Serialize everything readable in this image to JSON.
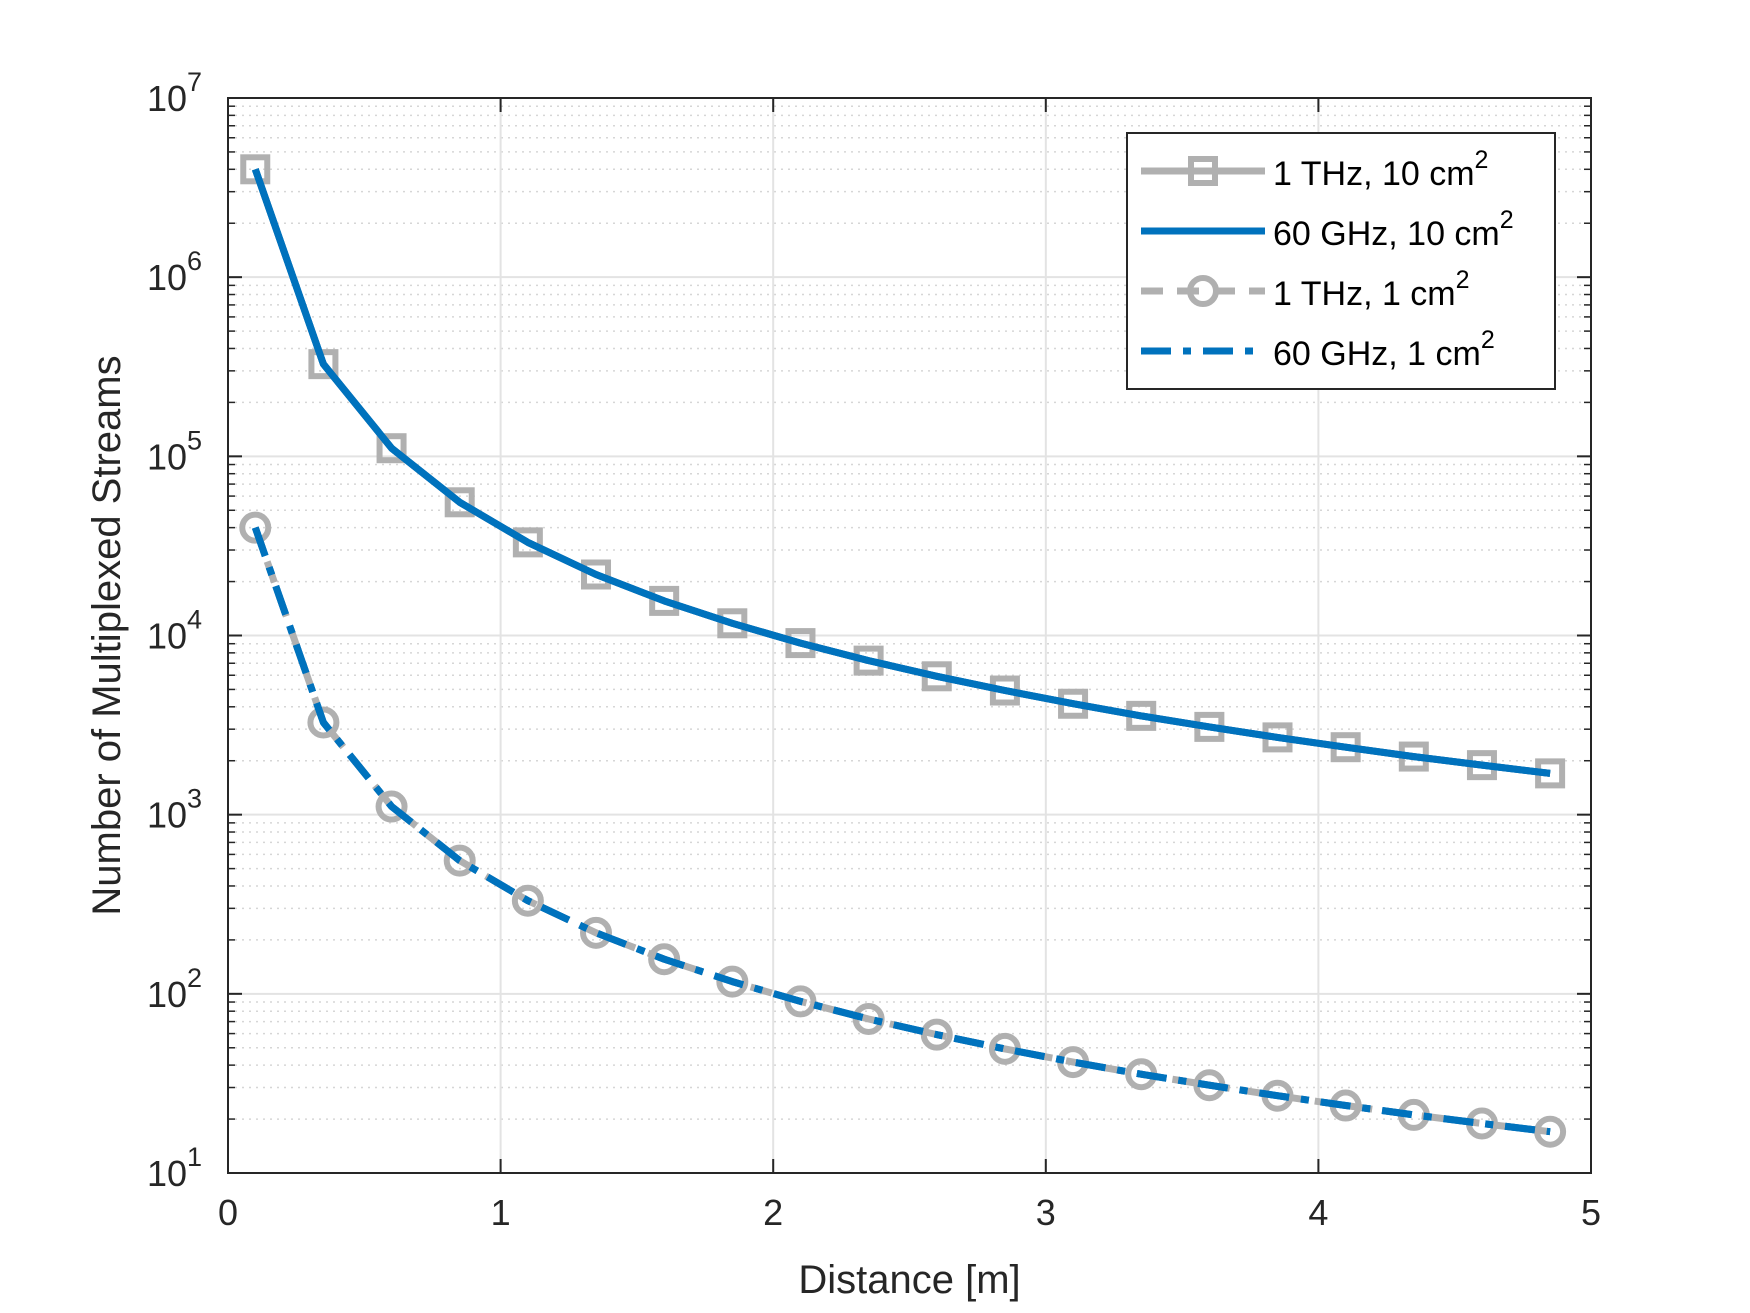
{
  "chart_data": {
    "type": "line",
    "title": "",
    "xlabel": "Distance [m]",
    "ylabel": "Number of Multiplexed Streams",
    "xlim": [
      0,
      5
    ],
    "ylim": [
      10,
      10000000
    ],
    "yscale": "log",
    "grid": true,
    "minor_grid": true,
    "legend_position": "top-right",
    "x_ticks": [
      "0",
      "1",
      "2",
      "3",
      "4",
      "5"
    ],
    "y_ticks": [
      {
        "base": "10",
        "exp": "1"
      },
      {
        "base": "10",
        "exp": "2"
      },
      {
        "base": "10",
        "exp": "3"
      },
      {
        "base": "10",
        "exp": "4"
      },
      {
        "base": "10",
        "exp": "5"
      },
      {
        "base": "10",
        "exp": "6"
      },
      {
        "base": "10",
        "exp": "7"
      }
    ],
    "x": [
      0.1,
      0.35,
      0.6,
      0.85,
      1.1,
      1.35,
      1.6,
      1.85,
      2.1,
      2.35,
      2.6,
      2.85,
      3.1,
      3.35,
      3.6,
      3.85,
      4.1,
      4.35,
      4.6,
      4.85
    ],
    "series": [
      {
        "name": "1 THz, 10 cm",
        "name_sup": "2",
        "color": "#b0b0b0",
        "line": "solid",
        "marker": "square",
        "values": [
          4000000,
          327000,
          111000,
          55400,
          33100,
          21900,
          15600,
          11700,
          9070,
          7240,
          5920,
          4930,
          4160,
          3560,
          3090,
          2700,
          2380,
          2110,
          1890,
          1700
        ]
      },
      {
        "name": "60 GHz, 10 cm",
        "name_sup": "2",
        "color": "#0072bd",
        "line": "solid",
        "marker": "none",
        "values": [
          4000000,
          327000,
          111000,
          55400,
          33100,
          21900,
          15600,
          11700,
          9070,
          7240,
          5920,
          4930,
          4160,
          3560,
          3090,
          2700,
          2380,
          2110,
          1890,
          1700
        ]
      },
      {
        "name": "1 THz, 1 cm",
        "name_sup": "2",
        "color": "#b0b0b0",
        "line": "dashed",
        "marker": "circle",
        "values": [
          40000,
          3270,
          1110,
          554,
          331,
          219,
          156,
          117,
          90.7,
          72.4,
          59.2,
          49.3,
          41.6,
          35.6,
          30.9,
          27.0,
          23.8,
          21.1,
          18.9,
          17.0
        ]
      },
      {
        "name": "60 GHz, 1 cm",
        "name_sup": "2",
        "color": "#0072bd",
        "line": "dashdot",
        "marker": "none",
        "values": [
          40000,
          3270,
          1110,
          554,
          331,
          219,
          156,
          117,
          90.7,
          72.4,
          59.2,
          49.3,
          41.6,
          35.6,
          30.9,
          27.0,
          23.8,
          21.1,
          18.9,
          17.0
        ]
      }
    ]
  }
}
